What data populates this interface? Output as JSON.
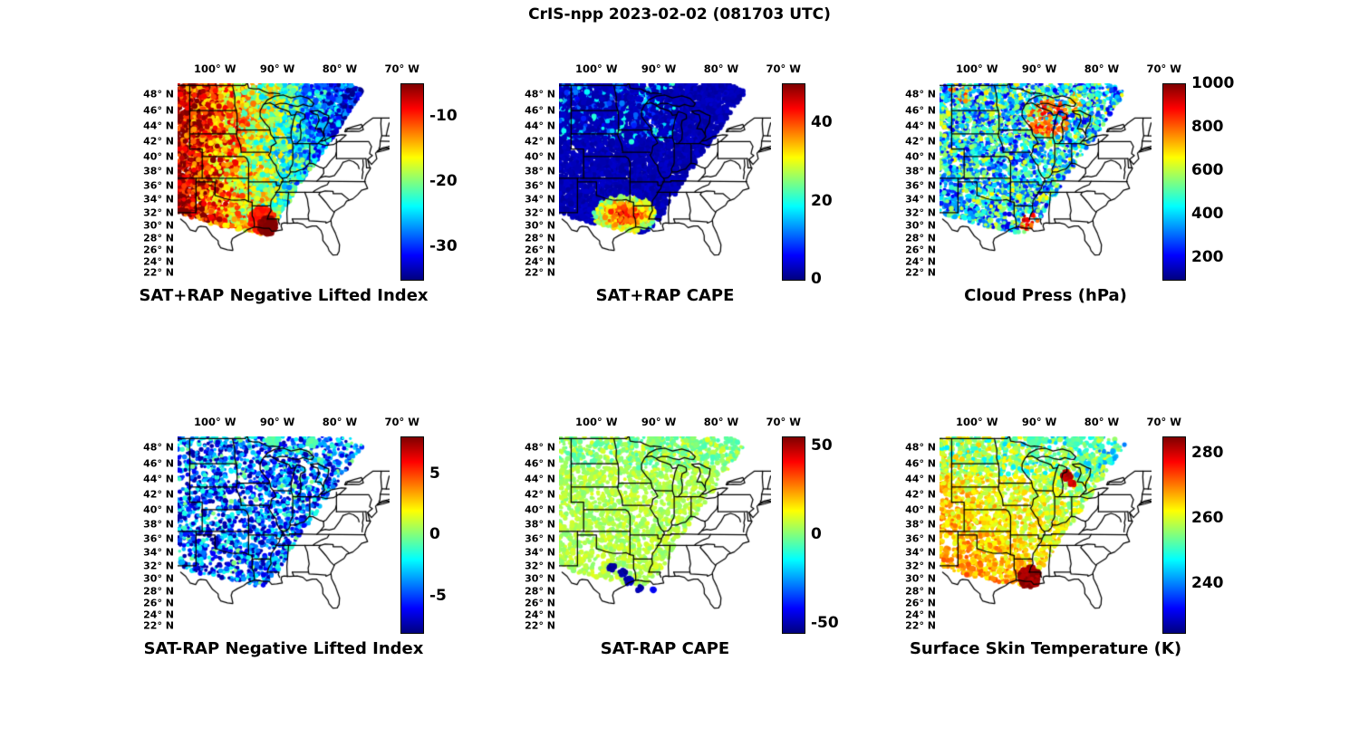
{
  "title": "CrIS-npp 2023-02-02 (081703 UTC)",
  "axes": {
    "lon_ticks": [
      "100° W",
      "90° W",
      "80° W",
      "70° W"
    ],
    "lon_values_w": [
      100,
      90,
      80,
      70
    ],
    "lat_ticks": [
      "48° N",
      "46° N",
      "44° N",
      "42° N",
      "40° N",
      "38° N",
      "36° N",
      "34° N",
      "32° N",
      "30° N",
      "28° N",
      "26° N",
      "24° N",
      "22° N"
    ],
    "lat_values": [
      48,
      46,
      44,
      42,
      40,
      38,
      36,
      34,
      32,
      30,
      28,
      26,
      24,
      22
    ],
    "lon_range_w": [
      106,
      72
    ],
    "lat_range_n": [
      21,
      49
    ],
    "projection": "conic-like; latitude spacing compresses toward the south"
  },
  "colormap": "jet",
  "swath": [
    [
      0,
      0
    ],
    [
      0.8,
      0
    ],
    [
      0.88,
      0.04
    ],
    [
      0.6,
      0.48
    ],
    [
      0.47,
      0.7
    ],
    [
      0.4,
      0.77
    ],
    [
      0.28,
      0.745
    ],
    [
      0.1,
      0.7
    ],
    [
      0,
      0.66
    ]
  ],
  "chart_data": [
    {
      "type": "map-heatmap",
      "title": "SAT+RAP Negative Lifted Index",
      "colorbar": {
        "min": -35,
        "max": -5,
        "ticks": [
          -10,
          -20,
          -30
        ]
      },
      "painter": {
        "kind": "gradient-x",
        "base": 0.97,
        "slope": 1.05,
        "noise": 0.22,
        "blobs": [
          {
            "x": 0.4,
            "y": 0.7,
            "r": 0.06,
            "v": 0.85
          },
          {
            "x": 0.425,
            "y": 0.73,
            "r": 0.042,
            "v": 1.0
          }
        ]
      },
      "density": {
        "n": 5200,
        "r": 2.6,
        "skip": 0
      },
      "summary": "Strongly negative lifted index (-25 to -35, red/orange) over the southern and central Plains, weakening eastward to -10/-15 (cyan/blue) toward the Great Lakes and Appalachians; isolated dark-red minimum at the Louisiana Gulf coast."
    },
    {
      "type": "map-heatmap",
      "title": "SAT+RAP CAPE",
      "colorbar": {
        "min": 0,
        "max": 50,
        "ticks": [
          0,
          20,
          40
        ]
      },
      "painter": {
        "kind": "low-with-hotspot",
        "base": 0.03,
        "noise": 0.05,
        "hotspot": {
          "x": 0.31,
          "y": 0.67,
          "rx": 0.15,
          "ry": 0.1,
          "v": 0.92
        },
        "streaks": {
          "ymax": 0.3,
          "xmax": 0.55,
          "prob": 0.22,
          "vmin": 0.12,
          "vmax": 0.45
        },
        "blobs": []
      },
      "density": {
        "n": 5200,
        "r": 2.6,
        "skip": 0
      },
      "summary": "CAPE near zero (dark blue) over almost the whole swath, with a strong maximum (orange/red, ~40-50) over east Texas and Louisiana and weak cyan/green streaks over the northern Plains."
    },
    {
      "type": "map-heatmap",
      "title": "Cloud Press (hPa)",
      "colorbar": {
        "min": 100,
        "max": 1000,
        "ticks": [
          200,
          400,
          600,
          800,
          1000
        ]
      },
      "painter": {
        "kind": "mottled",
        "vmin": 0.08,
        "vmax": 0.55,
        "greenProb": 0.15,
        "patches": [
          {
            "x": 0.52,
            "y": 0.18,
            "r": 0.1,
            "v": 0.78,
            "prob": 0.7
          },
          {
            "x": 0.43,
            "y": 0.71,
            "r": 0.05,
            "v": 0.85,
            "prob": 0.8
          },
          {
            "x": 0.62,
            "y": 0.1,
            "r": 0.05,
            "v": 0.7,
            "prob": 0.5
          },
          {
            "x": 0.12,
            "y": 0.03,
            "r": 0.07,
            "v": 0.75,
            "prob": 0.4
          }
        ],
        "blobs": []
      },
      "density": {
        "n": 3600,
        "r": 2.3,
        "skip": 0.12
      },
      "summary": "Scattered cloud-top pressure retrievals: mostly 200-500 hPa (blue) high clouds across the swath with green mid-level patches, and low clouds (800-1000 hPa, orange/red) over Wisconsin / Lake Michigan and coastal Louisiana."
    },
    {
      "type": "map-heatmap",
      "title": "SAT-RAP Negative Lifted Index",
      "colorbar": {
        "min": -8,
        "max": 8,
        "ticks": [
          5,
          0,
          -5
        ]
      },
      "painter": {
        "kind": "scatter-cool",
        "vbase": 0.24,
        "vspread": 0.2,
        "darkProb": 0.12,
        "darkV": 0.04,
        "greenProb": 0.05,
        "blobs": [
          {
            "x": 0.45,
            "y": 0.015,
            "r": 0.03,
            "v": 0.45
          },
          {
            "x": 0.635,
            "y": 0.03,
            "r": 0.022,
            "v": 0.45
          }
        ]
      },
      "density": {
        "n": 2800,
        "r": 2.3,
        "skip": 0.3
      },
      "summary": "Satellite-minus-RAP lifted-index differences mostly -2 to -6 (blue/cyan) across the Plains and upper Midwest, with scattered dark-blue dots near -8 (strongest over west Texas) and small cyan patches along the northern edge."
    },
    {
      "type": "map-heatmap",
      "title": "SAT-RAP CAPE",
      "colorbar": {
        "min": -55,
        "max": 55,
        "ticks": [
          50,
          0,
          -50
        ]
      },
      "painter": {
        "kind": "uniform-green",
        "v": 0.55,
        "noise": 0.05,
        "cyanNorth": {
          "ymax": 0.16,
          "prob": 0.45,
          "v": 0.46
        },
        "blobs": [
          {
            "x": 0.25,
            "y": 0.67,
            "r": 0.015,
            "v": 0.04
          },
          {
            "x": 0.3,
            "y": 0.7,
            "r": 0.016,
            "v": 0.04
          },
          {
            "x": 0.33,
            "y": 0.74,
            "r": 0.018,
            "v": 0.06
          },
          {
            "x": 0.38,
            "y": 0.78,
            "r": 0.012,
            "v": 0.04
          },
          {
            "x": 0.44,
            "y": 0.78,
            "r": 0.012,
            "v": 0.12
          },
          {
            "x": 0.45,
            "y": 0.015,
            "r": 0.03,
            "v": 0.52
          },
          {
            "x": 0.635,
            "y": 0.03,
            "r": 0.022,
            "v": 0.5
          }
        ]
      },
      "density": {
        "n": 2800,
        "r": 2.4,
        "skip": 0.25
      },
      "summary": "Satellite-minus-RAP CAPE differences near zero (green) nearly everywhere, with a few strongly negative (dark blue, ~-50) dots over east Texas / Louisiana and slightly negative cyan patches along the northern edge."
    },
    {
      "type": "map-heatmap",
      "title": "Surface Skin Temperature (K)",
      "colorbar": {
        "min": 225,
        "max": 285,
        "ticks": [
          280,
          260,
          240
        ]
      },
      "painter": {
        "kind": "warm-gradient",
        "base": 0.6,
        "ycoef": 0.2,
        "xcoef": -0.16,
        "noise": 0.1,
        "coolNorth": {
          "ymax": 0.2,
          "prob": 0.35,
          "dv": -0.15
        },
        "blobs": [
          {
            "x": 0.425,
            "y": 0.72,
            "r": 0.05,
            "v": 0.97
          },
          {
            "x": 0.6,
            "y": 0.2,
            "r": 0.022,
            "v": 0.95
          },
          {
            "x": 0.625,
            "y": 0.24,
            "r": 0.012,
            "v": 0.92
          },
          {
            "x": 0.45,
            "y": 0.015,
            "r": 0.03,
            "v": 0.45
          },
          {
            "x": 0.635,
            "y": 0.03,
            "r": 0.022,
            "v": 0.45
          }
        ]
      },
      "density": {
        "n": 3000,
        "r": 2.4,
        "skip": 0.18
      },
      "summary": "Skin temperature ~265-275 K (yellow/orange) over the Plains and South, ~255-265 K (green) through the Midwest, cooler cyan patches (~245 K) along the northern edge, and a dark-red warm maximum (>280 K) over Louisiana plus small warm spots near Lake Michigan."
    }
  ]
}
